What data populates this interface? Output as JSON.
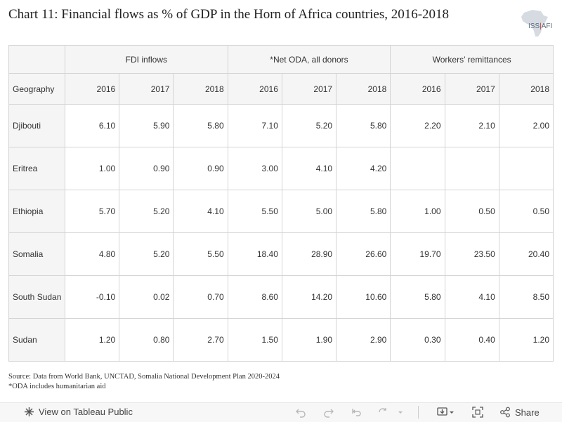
{
  "title": "Chart 11: Financial flows as % of GDP in the Horn of Africa countries, 2016-2018",
  "logo": {
    "text_left": "ISS",
    "text_sep": "|",
    "text_right": "AFI"
  },
  "chart_data": {
    "type": "table",
    "row_header": "Geography",
    "groups": [
      "FDI inflows",
      "*Net ODA, all donors",
      "Workers’ remittances"
    ],
    "years": [
      "2016",
      "2017",
      "2018"
    ],
    "rows": [
      {
        "geography": "Djibouti",
        "values": [
          "6.10",
          "5.90",
          "5.80",
          "7.10",
          "5.20",
          "5.80",
          "2.20",
          "2.10",
          "2.00"
        ]
      },
      {
        "geography": "Eritrea",
        "values": [
          "1.00",
          "0.90",
          "0.90",
          "3.00",
          "4.10",
          "4.20",
          "",
          "",
          ""
        ]
      },
      {
        "geography": "Ethiopia",
        "values": [
          "5.70",
          "5.20",
          "4.10",
          "5.50",
          "5.00",
          "5.80",
          "1.00",
          "0.50",
          "0.50"
        ]
      },
      {
        "geography": "Somalia",
        "values": [
          "4.80",
          "5.20",
          "5.50",
          "18.40",
          "28.90",
          "26.60",
          "19.70",
          "23.50",
          "20.40"
        ]
      },
      {
        "geography": "South Sudan",
        "values": [
          "-0.10",
          "0.02",
          "0.70",
          "8.60",
          "14.20",
          "10.60",
          "5.80",
          "4.10",
          "8.50"
        ]
      },
      {
        "geography": "Sudan",
        "values": [
          "1.20",
          "0.80",
          "2.70",
          "1.50",
          "1.90",
          "2.90",
          "0.30",
          "0.40",
          "1.20"
        ]
      }
    ]
  },
  "source": {
    "line1": "Source: Data from World Bank, UNCTAD, Somalia National Development Plan 2020-2024",
    "line2": "*ODA includes humanitarian aid"
  },
  "toolbar": {
    "view_label": "View on Tableau Public",
    "share_label": "Share",
    "icons": [
      "tableau-icon",
      "undo-icon",
      "redo-icon",
      "revert-icon",
      "refresh-icon",
      "pause-dropdown-icon",
      "download-icon",
      "fullscreen-icon",
      "share-icon"
    ]
  }
}
